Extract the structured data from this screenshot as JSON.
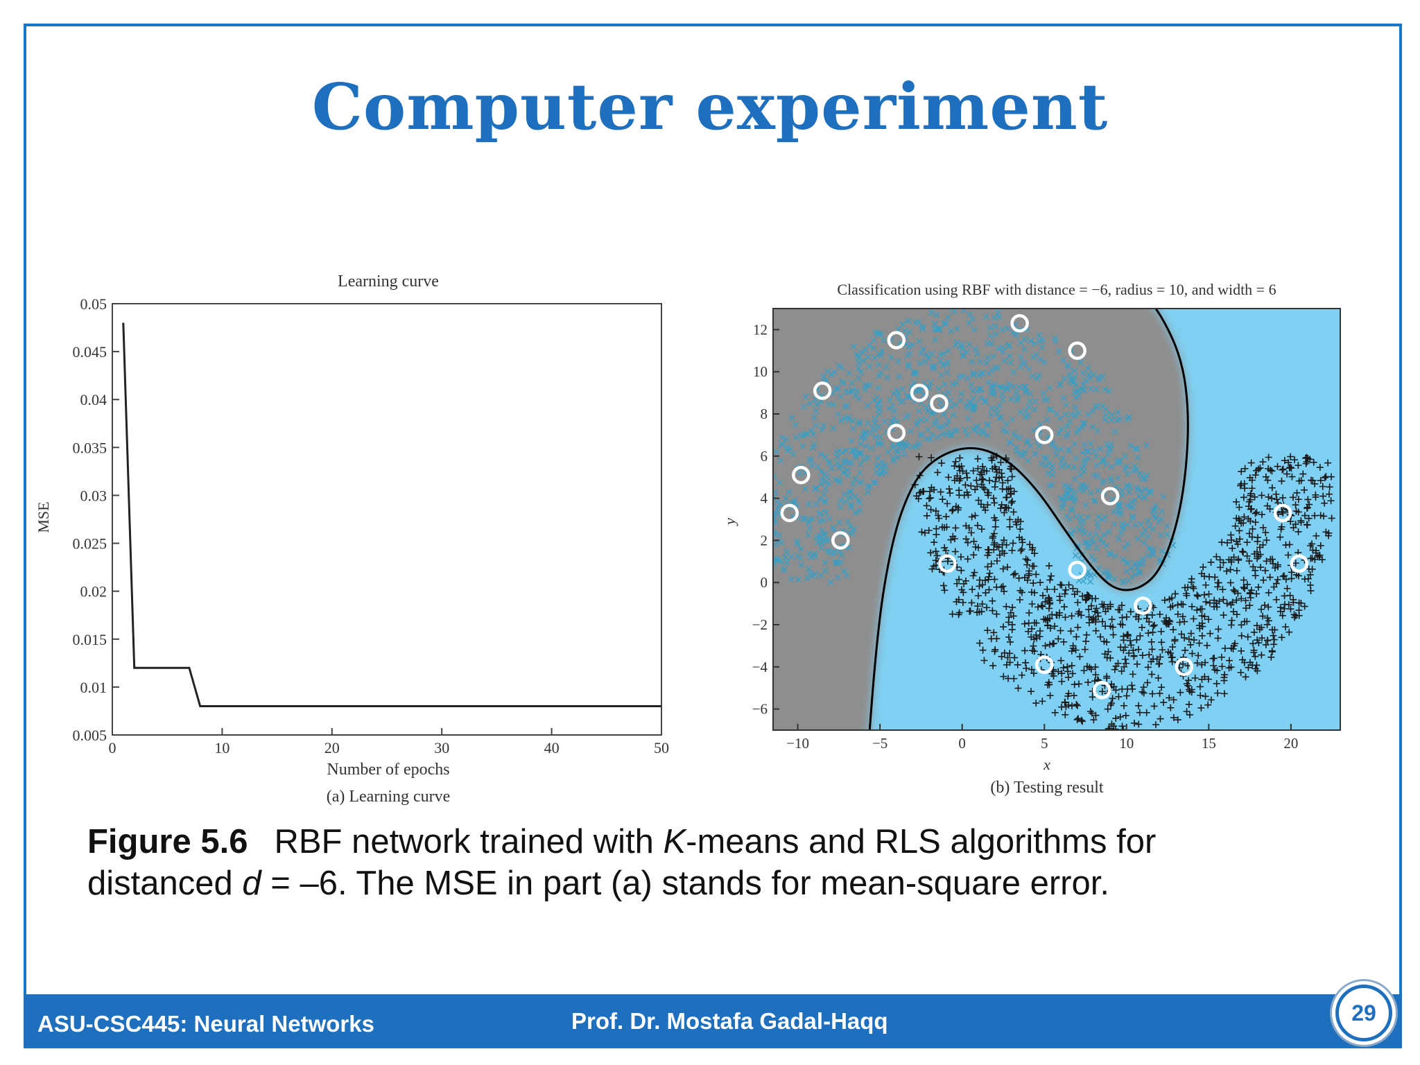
{
  "slide": {
    "title": "Computer experiment",
    "caption_label": "Figure 5.6",
    "caption_line1_part1": "RBF network trained with ",
    "caption_line1_italic": "K",
    "caption_line1_part2": "-means and RLS algorithms for",
    "caption_line2_part1": "distanced ",
    "caption_line2_italic": "d",
    "caption_line2_part2": " = –6. The MSE in part (a) stands for mean-square error.",
    "footer_left": "ASU-CSC445: Neural Networks",
    "footer_center": "Prof. Dr. Mostafa Gadal-Haqq",
    "page_number": "29"
  },
  "chart_data": [
    {
      "type": "line",
      "title": "Learning curve",
      "xlabel": "Number of epochs",
      "ylabel": "MSE",
      "subcaption": "(a) Learning curve",
      "xlim": [
        0,
        50
      ],
      "ylim": [
        0.005,
        0.05
      ],
      "x_ticks": [
        "0",
        "10",
        "20",
        "30",
        "40",
        "50"
      ],
      "y_ticks": [
        "0.005",
        "0.01",
        "0.015",
        "0.02",
        "0.025",
        "0.03",
        "0.035",
        "0.04",
        "0.045",
        "0.05"
      ],
      "series": [
        {
          "x": [
            1,
            2,
            7,
            8,
            50
          ],
          "y": [
            0.048,
            0.012,
            0.012,
            0.008,
            0.008
          ]
        }
      ]
    },
    {
      "type": "scatter",
      "title": "Classification using RBF with distance = −6, radius = 10, and width = 6",
      "xlabel": "x",
      "ylabel": "y",
      "subcaption": "(b) Testing result",
      "xlim": [
        -11.5,
        23
      ],
      "ylim": [
        -7,
        13
      ],
      "x_ticks": [
        "−10",
        "−5",
        "0",
        "5",
        "10",
        "15",
        "20"
      ],
      "y_ticks": [
        "−6",
        "−4",
        "−2",
        "0",
        "2",
        "4",
        "6",
        "8",
        "10",
        "12"
      ],
      "background_colors": {
        "region_upper": "#8e8e8e",
        "region_lower": "#7fd0f2"
      },
      "series": [
        {
          "name": "upper moon",
          "marker": "x",
          "color": "#3a9ec4",
          "center": [
            0,
            0
          ],
          "radius": 10,
          "width": 6,
          "half": "upper"
        },
        {
          "name": "lower moon",
          "marker": "+",
          "color": "#1a1a1a",
          "center": [
            10,
            6
          ],
          "radius": 10,
          "width": 6,
          "half": "lower"
        },
        {
          "name": "RBF centers",
          "marker": "circle",
          "points": [
            [
              -10.5,
              3.3
            ],
            [
              -9.8,
              5.1
            ],
            [
              -8.5,
              9.1
            ],
            [
              -7.4,
              2.0
            ],
            [
              -4,
              11.5
            ],
            [
              -4,
              7.1
            ],
            [
              -2.6,
              9.0
            ],
            [
              -1.4,
              8.5
            ],
            [
              -0.9,
              0.9
            ],
            [
              3.5,
              12.3
            ],
            [
              5,
              7.0
            ],
            [
              7,
              11.0
            ],
            [
              9,
              4.1
            ],
            [
              7,
              0.6
            ],
            [
              11,
              -1.1
            ],
            [
              5,
              -3.9
            ],
            [
              8.5,
              -5.1
            ],
            [
              13.5,
              -4.0
            ],
            [
              19.5,
              3.3
            ],
            [
              20.5,
              0.9
            ]
          ]
        }
      ],
      "decision_boundary": {
        "color": "#000000"
      }
    }
  ]
}
